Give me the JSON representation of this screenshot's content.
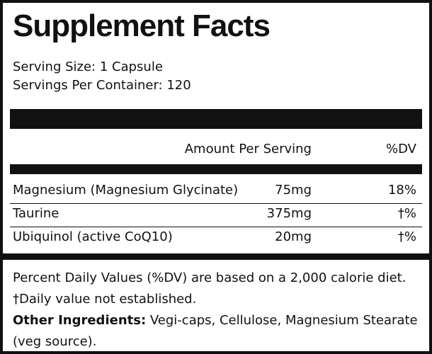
{
  "header": {
    "title": "Supplement Facts",
    "serving_size": "Serving Size: 1 Capsule",
    "servings_per_container": "Servings Per Container: 120"
  },
  "table": {
    "columns": [
      "Amount Per Serving",
      "%DV"
    ],
    "rows": [
      [
        "Magnesium (Magnesium Glycinate)",
        "75mg",
        "18%"
      ],
      [
        "Taurine",
        "375mg",
        "†%"
      ],
      [
        "Ubiquinol (active CoQ10)",
        "20mg",
        "†%"
      ]
    ]
  },
  "footer": {
    "notes": [
      "Percent Daily Values (%DV) are based on a 2,000 calorie diet.",
      "†Daily value not established."
    ],
    "other_ingredients": {
      "label": "Other Ingredients:",
      "text": "Vegi-caps, Cellulose, Magnesium Stearate (veg source)."
    }
  }
}
